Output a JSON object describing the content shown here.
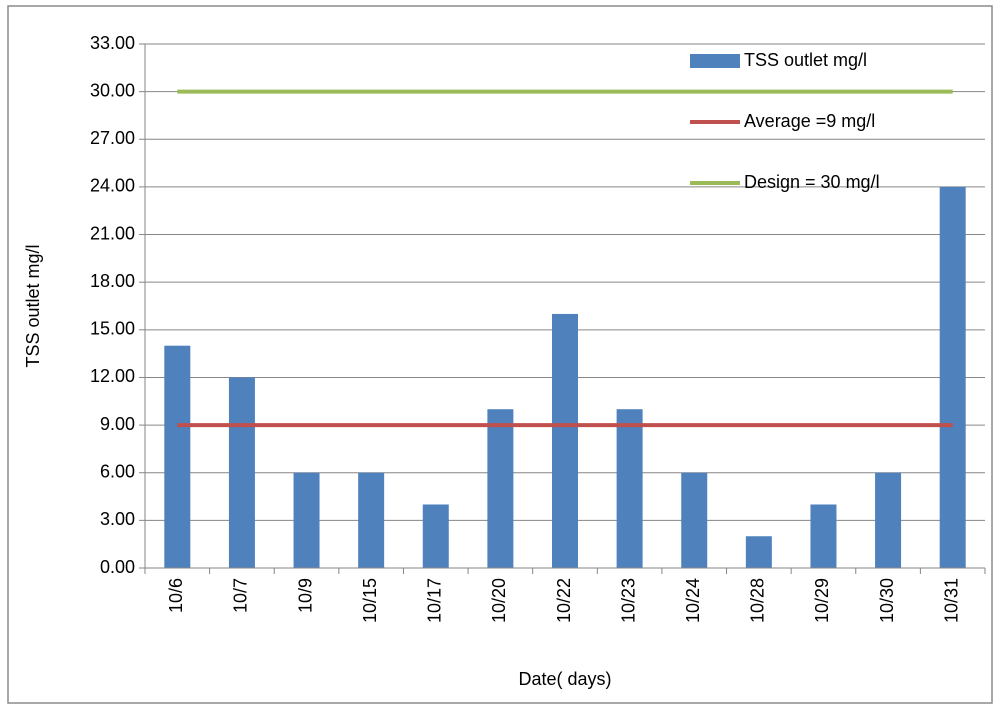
{
  "chart_data": {
    "type": "bar",
    "x_label": "Date( days)",
    "y_label": "TSS outlet mg/l",
    "categories": [
      "10/6",
      "10/7",
      "10/9",
      "10/15",
      "10/17",
      "10/20",
      "10/22",
      "10/23",
      "10/24",
      "10/28",
      "10/29",
      "10/30",
      "10/31"
    ],
    "series": [
      {
        "name": "TSS outlet mg/l",
        "type": "bar",
        "color": "#4f81bd",
        "values": [
          14,
          12,
          6,
          6,
          4,
          10,
          16,
          10,
          6,
          2,
          4,
          6,
          24
        ]
      },
      {
        "name": "Average =9 mg/l",
        "type": "line",
        "color": "#c0504d",
        "values": [
          9,
          9,
          9,
          9,
          9,
          9,
          9,
          9,
          9,
          9,
          9,
          9,
          9
        ]
      },
      {
        "name": "Design = 30 mg/l",
        "type": "line",
        "color": "#9bbb59",
        "values": [
          30,
          30,
          30,
          30,
          30,
          30,
          30,
          30,
          30,
          30,
          30,
          30,
          30
        ]
      }
    ],
    "ylim": [
      0,
      33
    ],
    "yticks": [
      {
        "value": 0,
        "label": "0.00"
      },
      {
        "value": 3,
        "label": "3.00"
      },
      {
        "value": 6,
        "label": "6.00"
      },
      {
        "value": 9,
        "label": "9.00"
      },
      {
        "value": 12,
        "label": "12.00"
      },
      {
        "value": 15,
        "label": "15.00"
      },
      {
        "value": 18,
        "label": "18.00"
      },
      {
        "value": 21,
        "label": "21.00"
      },
      {
        "value": 24,
        "label": "24.00"
      },
      {
        "value": 27,
        "label": "27.00"
      },
      {
        "value": 30,
        "label": "30.00"
      },
      {
        "value": 33,
        "label": "33.00"
      }
    ],
    "grid": true,
    "legend": "top-right"
  }
}
